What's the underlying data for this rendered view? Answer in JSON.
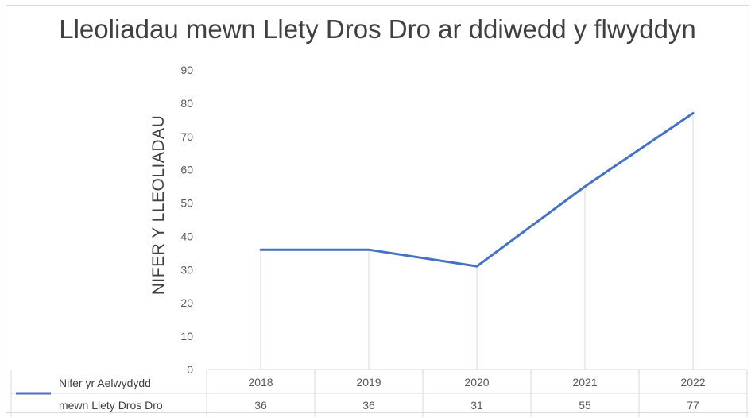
{
  "chart_data": {
    "type": "line",
    "title": "Lleoliadau mewn Llety Dros Dro ar ddiwedd y flwyddyn",
    "ylabel": "NIFER Y LLEOLIADAU",
    "xlabel": "",
    "categories": [
      "2018",
      "2019",
      "2020",
      "2021",
      "2022"
    ],
    "series": [
      {
        "name": "Nifer yr Aelwydydd mewn Llety Dros Dro",
        "values": [
          36,
          36,
          31,
          55,
          77
        ],
        "color": "#4472c4"
      }
    ],
    "ylim": [
      0,
      90
    ],
    "yticks": [
      "0",
      "10",
      "20",
      "30",
      "40",
      "50",
      "60",
      "70",
      "80",
      "90"
    ],
    "legend": "left-of-data-table",
    "data_table": true,
    "grid": "vertical-category-lines"
  },
  "legend_lines": [
    "Nifer yr Aelwydydd",
    "mewn Llety Dros Dro"
  ]
}
